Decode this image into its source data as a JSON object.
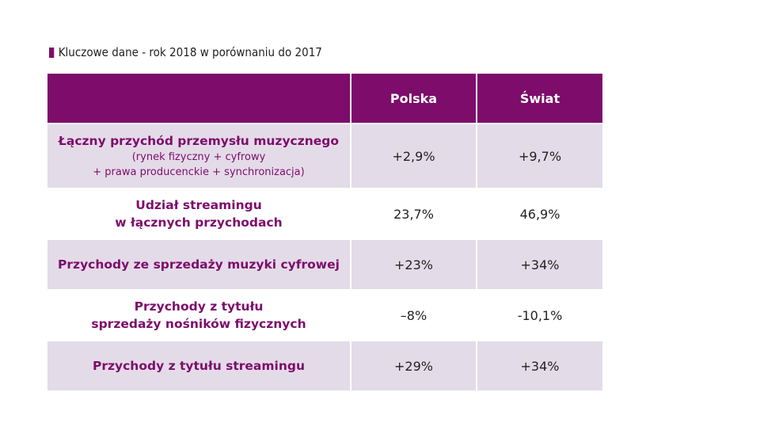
{
  "title": "Kluczowe dane - rok 2018 w porównaniu do 2017",
  "colors": {
    "header": "#7d0c6b",
    "shade": "#e4dbe8"
  },
  "headers": [
    "",
    "Polska",
    "Świat"
  ],
  "rows": [
    {
      "label": "Łączny przychód przemysłu muzycznego",
      "sub1": "(rynek fizyczny + cyfrowy",
      "sub2": "+ prawa producenckie + synchronizacja)",
      "polska": "+2,9%",
      "swiat": "+9,7%"
    },
    {
      "label1": "Udział streamingu",
      "label2": "w łącznych przychodach",
      "polska": "23,7%",
      "swiat": "46,9%"
    },
    {
      "label": "Przychody ze sprzedaży muzyki cyfrowej",
      "polska": "+23%",
      "swiat": "+34%"
    },
    {
      "label1": "Przychody z tytułu",
      "label2": "sprzedaży nośników fizycznych",
      "polska": "–8%",
      "swiat": "-10,1%"
    },
    {
      "label": "Przychody z tytułu streamingu",
      "polska": "+29%",
      "swiat": "+34%"
    }
  ]
}
